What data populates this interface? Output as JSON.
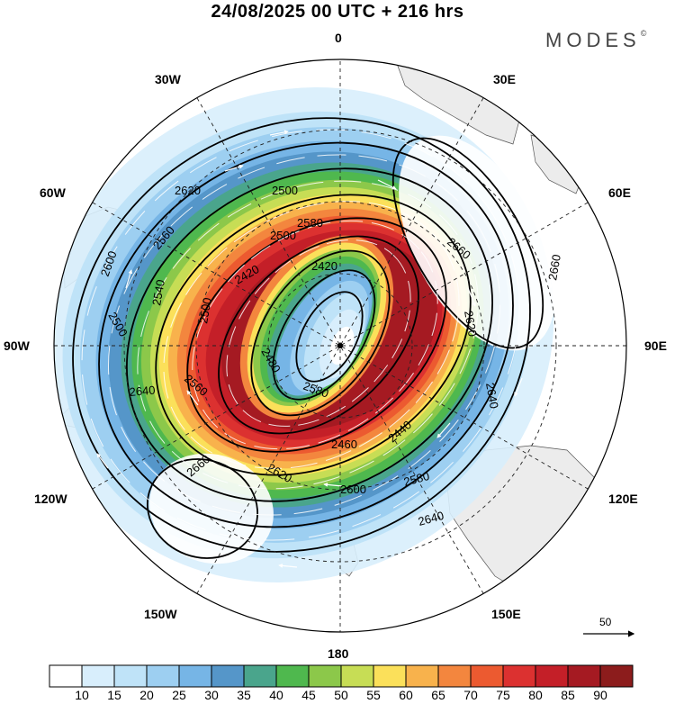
{
  "title": "24/08/2025  00 UTC  + 216 hrs",
  "logo": "MODES",
  "logo_mark": "©",
  "longitude_labels": {
    "n0": "0",
    "e30": "30E",
    "e60": "60E",
    "e90": "90E",
    "e120": "120E",
    "e150": "150E",
    "s180": "180",
    "w150": "150W",
    "w120": "120W",
    "w90": "90W",
    "w60": "60W",
    "w30": "30W"
  },
  "vector_reference": "50",
  "colorbar": {
    "labels": [
      "10",
      "15",
      "20",
      "25",
      "30",
      "35",
      "40",
      "45",
      "50",
      "55",
      "60",
      "65",
      "70",
      "75",
      "80",
      "85",
      "90"
    ],
    "colors": [
      "#ffffff",
      "#d8eefc",
      "#bfe3f8",
      "#9dcff1",
      "#76b5e6",
      "#5596c9",
      "#4aa58c",
      "#4fb84e",
      "#8cc84a",
      "#c7dd55",
      "#fbe05a",
      "#f8b24c",
      "#f3863e",
      "#ec5a30",
      "#dc3130",
      "#c41f28",
      "#a51a22",
      "#8c1c1c"
    ]
  },
  "contour_labels": [
    "2620",
    "2500",
    "2580",
    "2560",
    "2500",
    "2540",
    "2600",
    "2500",
    "2420",
    "2420",
    "2480",
    "2580",
    "2440",
    "2460",
    "2560",
    "2500",
    "2660",
    "2620",
    "2640",
    "2660",
    "2640",
    "2620",
    "2600",
    "2580",
    "2640",
    "2660"
  ]
}
